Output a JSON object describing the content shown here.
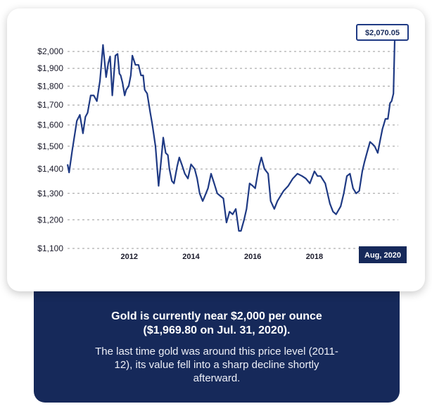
{
  "colors": {
    "navy": "#16295a",
    "line": "#1f3a84",
    "card": "#ffffff"
  },
  "chart_data": {
    "type": "line",
    "title": "",
    "xlabel": "",
    "ylabel": "",
    "ylim": [
      1100,
      2070
    ],
    "y_scale": "log",
    "grid": true,
    "y_ticks": [
      {
        "value": 2000,
        "label": "$2,000"
      },
      {
        "value": 1900,
        "label": "$1,900"
      },
      {
        "value": 1800,
        "label": "$1,800"
      },
      {
        "value": 1700,
        "label": "$1,700"
      },
      {
        "value": 1600,
        "label": "$1,600"
      },
      {
        "value": 1500,
        "label": "$1,500"
      },
      {
        "value": 1400,
        "label": "$1,400"
      },
      {
        "value": 1300,
        "label": "$1,300"
      },
      {
        "value": 1200,
        "label": "$1,200"
      },
      {
        "value": 1100,
        "label": "$1,100"
      }
    ],
    "x_ticks": [
      {
        "value": 2012,
        "label": "2012"
      },
      {
        "value": 2014,
        "label": "2014"
      },
      {
        "value": 2016,
        "label": "2016"
      },
      {
        "value": 2018,
        "label": "2018"
      }
    ],
    "end_label": "Aug, 2020",
    "peak_label": "$2,070.05",
    "series": [
      {
        "x": [
          2010.0,
          2010.05,
          2010.15,
          2010.3,
          2010.4,
          2010.5,
          2010.58,
          2010.65,
          2010.75,
          2010.85,
          2010.95,
          2011.05,
          2011.15,
          2011.25,
          2011.32,
          2011.38,
          2011.45,
          2011.55,
          2011.62,
          2011.68,
          2011.72,
          2011.78,
          2011.85,
          2011.9,
          2011.98,
          2012.05,
          2012.1,
          2012.2,
          2012.3,
          2012.38,
          2012.45,
          2012.5,
          2012.58,
          2012.68,
          2012.75,
          2012.85,
          2012.95,
          2013.02,
          2013.1,
          2013.18,
          2013.25,
          2013.3,
          2013.38,
          2013.45,
          2013.55,
          2013.62,
          2013.7,
          2013.8,
          2013.9,
          2014.0,
          2014.12,
          2014.2,
          2014.28,
          2014.38,
          2014.45,
          2014.55,
          2014.65,
          2014.75,
          2014.85,
          2014.95,
          2015.05,
          2015.15,
          2015.25,
          2015.35,
          2015.45,
          2015.55,
          2015.62,
          2015.72,
          2015.8,
          2015.9,
          2016.0,
          2016.08,
          2016.2,
          2016.28,
          2016.38,
          2016.5,
          2016.58,
          2016.7,
          2016.8,
          2016.9,
          2017.0,
          2017.15,
          2017.3,
          2017.45,
          2017.6,
          2017.72,
          2017.85,
          2018.0,
          2018.1,
          2018.2,
          2018.35,
          2018.5,
          2018.6,
          2018.7,
          2018.85,
          2018.95,
          2019.05,
          2019.15,
          2019.25,
          2019.35,
          2019.45,
          2019.55,
          2019.62,
          2019.7,
          2019.8,
          2019.88,
          2019.95,
          2020.05,
          2020.12,
          2020.2,
          2020.3,
          2020.38,
          2020.45,
          2020.5,
          2020.56,
          2020.6
        ],
        "values": [
          1420,
          1385,
          1480,
          1620,
          1650,
          1560,
          1640,
          1660,
          1750,
          1750,
          1720,
          1830,
          2040,
          1850,
          1930,
          1970,
          1750,
          1975,
          1985,
          1870,
          1860,
          1820,
          1750,
          1780,
          1800,
          1860,
          1975,
          1920,
          1920,
          1860,
          1860,
          1780,
          1760,
          1660,
          1600,
          1500,
          1330,
          1420,
          1540,
          1470,
          1460,
          1400,
          1350,
          1340,
          1410,
          1450,
          1420,
          1380,
          1360,
          1420,
          1400,
          1360,
          1300,
          1270,
          1290,
          1320,
          1380,
          1340,
          1300,
          1290,
          1280,
          1190,
          1230,
          1220,
          1240,
          1160,
          1160,
          1200,
          1240,
          1340,
          1330,
          1320,
          1410,
          1450,
          1400,
          1380,
          1270,
          1240,
          1270,
          1290,
          1310,
          1330,
          1360,
          1380,
          1370,
          1360,
          1340,
          1390,
          1370,
          1370,
          1340,
          1260,
          1230,
          1220,
          1250,
          1300,
          1370,
          1380,
          1320,
          1300,
          1310,
          1390,
          1430,
          1470,
          1520,
          1510,
          1500,
          1470,
          1520,
          1580,
          1630,
          1630,
          1710,
          1720,
          1760,
          2070
        ]
      }
    ]
  },
  "info": {
    "headline": "Gold is currently near $2,000 per ounce ($1,969.80 on Jul. 31, 2020).",
    "body": "The last time gold was around this price level (2011-12), its value fell into a sharp decline shortly afterward."
  }
}
